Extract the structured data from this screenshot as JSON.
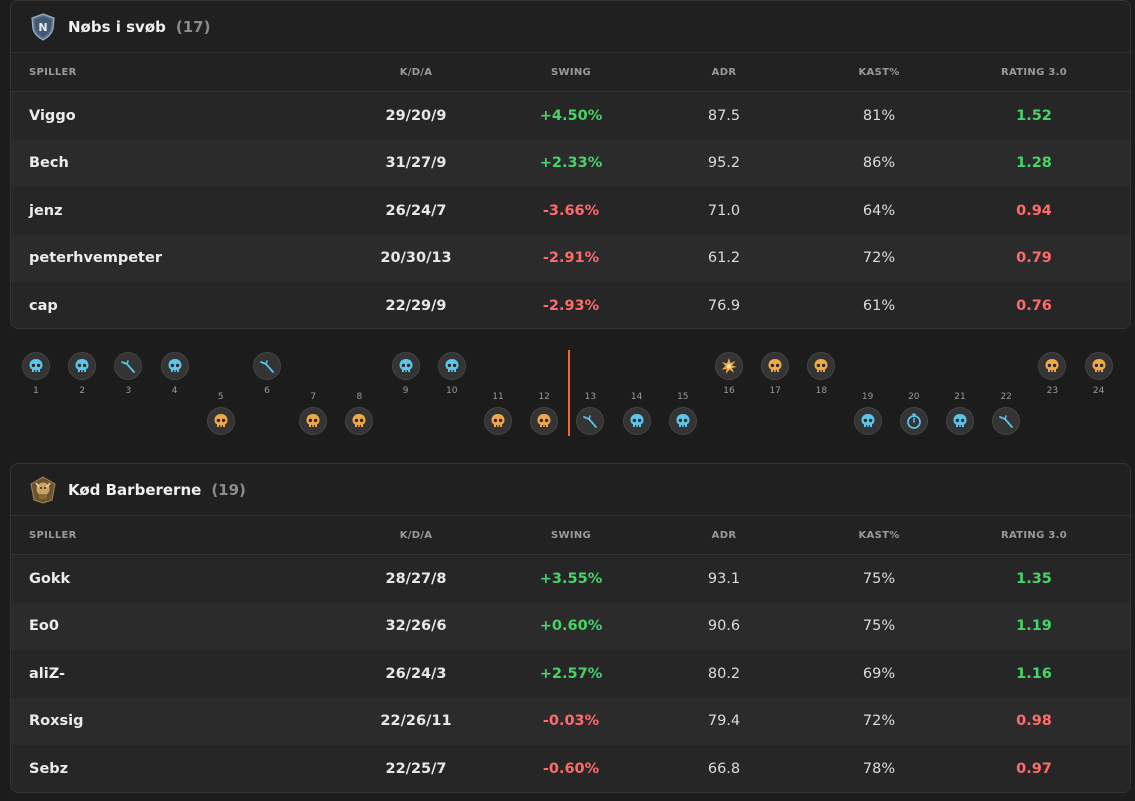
{
  "colors": {
    "positive": "#46d468",
    "negative": "#ff6b6b",
    "ct_side": "#5bc6ea",
    "t_side": "#f0a848",
    "halftime_marker": "#f06a30"
  },
  "columns": {
    "player": "SPILLER",
    "kda": "K/D/A",
    "swing": "SWING",
    "adr": "ADR",
    "kast": "KAST%",
    "rating": "RATING 3.0"
  },
  "teams": [
    {
      "name": "Nøbs i svøb",
      "count": "(17)",
      "logo_icon": "shield-n-logo",
      "logo_letter": "N",
      "players": [
        {
          "name": "Viggo",
          "kda": "29/20/9",
          "swing": "+4.50%",
          "swing_sign": "pos",
          "adr": "87.5",
          "kast": "81%",
          "rating": "1.52",
          "rating_sign": "pos"
        },
        {
          "name": "Bech",
          "kda": "31/27/9",
          "swing": "+2.33%",
          "swing_sign": "pos",
          "adr": "95.2",
          "kast": "86%",
          "rating": "1.28",
          "rating_sign": "pos"
        },
        {
          "name": "jenz",
          "kda": "26/24/7",
          "swing": "-3.66%",
          "swing_sign": "neg",
          "adr": "71.0",
          "kast": "64%",
          "rating": "0.94",
          "rating_sign": "neg"
        },
        {
          "name": "peterhvempeter",
          "kda": "20/30/13",
          "swing": "-2.91%",
          "swing_sign": "neg",
          "adr": "61.2",
          "kast": "72%",
          "rating": "0.79",
          "rating_sign": "neg"
        },
        {
          "name": "cap",
          "kda": "22/29/9",
          "swing": "-2.93%",
          "swing_sign": "neg",
          "adr": "76.9",
          "kast": "61%",
          "rating": "0.76",
          "rating_sign": "neg"
        }
      ]
    },
    {
      "name": "Kød Barbererne",
      "count": "(19)",
      "logo_icon": "barbarian-logo",
      "players": [
        {
          "name": "Gokk",
          "kda": "28/27/8",
          "swing": "+3.55%",
          "swing_sign": "pos",
          "adr": "93.1",
          "kast": "75%",
          "rating": "1.35",
          "rating_sign": "pos"
        },
        {
          "name": "Eo0",
          "kda": "32/26/6",
          "swing": "+0.60%",
          "swing_sign": "pos",
          "adr": "90.6",
          "kast": "75%",
          "rating": "1.19",
          "rating_sign": "pos"
        },
        {
          "name": "aliZ-",
          "kda": "26/24/3",
          "swing": "+2.57%",
          "swing_sign": "pos",
          "adr": "80.2",
          "kast": "69%",
          "rating": "1.16",
          "rating_sign": "pos"
        },
        {
          "name": "Roxsig",
          "kda": "22/26/11",
          "swing": "-0.03%",
          "swing_sign": "neg",
          "adr": "79.4",
          "kast": "72%",
          "rating": "0.98",
          "rating_sign": "neg"
        },
        {
          "name": "Sebz",
          "kda": "22/25/7",
          "swing": "-0.60%",
          "swing_sign": "neg",
          "adr": "66.8",
          "kast": "78%",
          "rating": "0.97",
          "rating_sign": "neg"
        }
      ]
    }
  ],
  "rounds": [
    {
      "n": "1",
      "winner": "top",
      "side": "ct",
      "icon": "skull-icon"
    },
    {
      "n": "2",
      "winner": "top",
      "side": "ct",
      "icon": "skull-icon"
    },
    {
      "n": "3",
      "winner": "top",
      "side": "ct",
      "icon": "defuse-icon"
    },
    {
      "n": "4",
      "winner": "top",
      "side": "ct",
      "icon": "skull-icon"
    },
    {
      "n": "5",
      "winner": "bottom",
      "side": "t",
      "icon": "skull-icon"
    },
    {
      "n": "6",
      "winner": "top",
      "side": "ct",
      "icon": "defuse-icon"
    },
    {
      "n": "7",
      "winner": "bottom",
      "side": "t",
      "icon": "skull-icon"
    },
    {
      "n": "8",
      "winner": "bottom",
      "side": "t",
      "icon": "skull-icon"
    },
    {
      "n": "9",
      "winner": "top",
      "side": "ct",
      "icon": "skull-icon"
    },
    {
      "n": "10",
      "winner": "top",
      "side": "ct",
      "icon": "skull-icon"
    },
    {
      "n": "11",
      "winner": "bottom",
      "side": "t",
      "icon": "skull-icon"
    },
    {
      "n": "12",
      "winner": "bottom",
      "side": "t",
      "icon": "skull-icon"
    },
    {
      "n": "13",
      "winner": "bottom",
      "side": "ct",
      "icon": "defuse-icon"
    },
    {
      "n": "14",
      "winner": "bottom",
      "side": "ct",
      "icon": "skull-icon"
    },
    {
      "n": "15",
      "winner": "bottom",
      "side": "ct",
      "icon": "skull-icon"
    },
    {
      "n": "16",
      "winner": "top",
      "side": "t",
      "icon": "explosion-icon"
    },
    {
      "n": "17",
      "winner": "top",
      "side": "t",
      "icon": "skull-icon"
    },
    {
      "n": "18",
      "winner": "top",
      "side": "t",
      "icon": "skull-icon"
    },
    {
      "n": "19",
      "winner": "bottom",
      "side": "ct",
      "icon": "skull-icon"
    },
    {
      "n": "20",
      "winner": "bottom",
      "side": "ct",
      "icon": "timer-icon"
    },
    {
      "n": "21",
      "winner": "bottom",
      "side": "ct",
      "icon": "skull-icon"
    },
    {
      "n": "22",
      "winner": "bottom",
      "side": "ct",
      "icon": "defuse-icon"
    },
    {
      "n": "23",
      "winner": "top",
      "side": "t",
      "icon": "skull-icon"
    },
    {
      "n": "24",
      "winner": "top",
      "side": "t",
      "icon": "skull-icon"
    }
  ]
}
